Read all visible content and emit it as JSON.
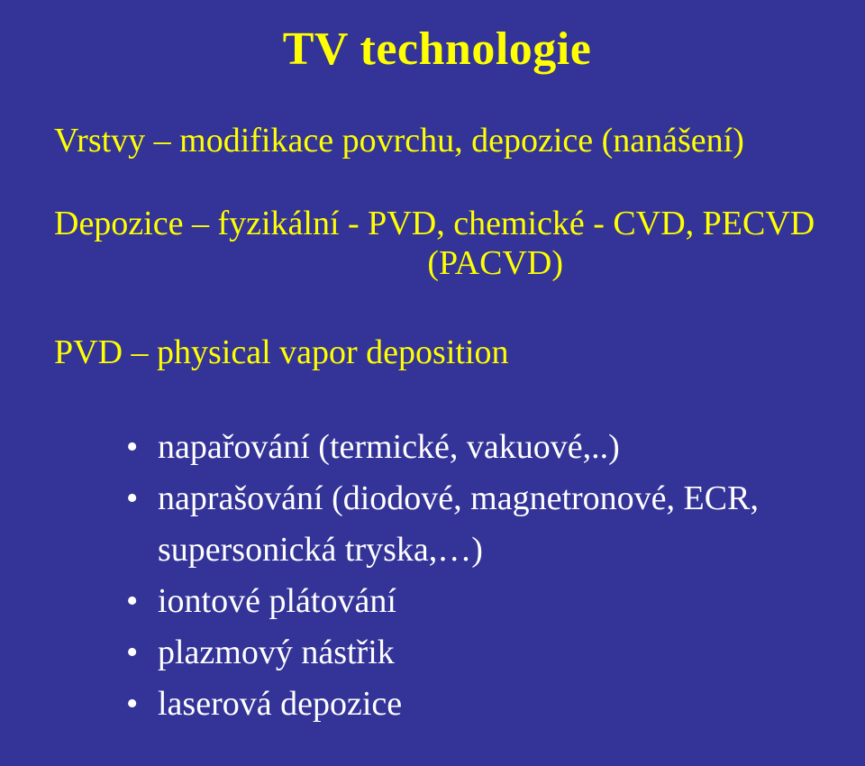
{
  "background_color": "#333398",
  "title_color": "#ffff00",
  "heading_color": "#ffff00",
  "bullet_color": "#ffffff",
  "font_family": "Times New Roman",
  "title": "TV technologie",
  "line1": "Vrstvy – modifikace povrchu, depozice (nanášení)",
  "line2": "Depozice – fyzikální - PVD, chemické - CVD, PECVD",
  "line2_sub": "(PACVD)",
  "line3": "PVD – physical vapor deposition",
  "bullets": [
    "napařování (termické, vakuové,..)",
    "naprašování (diodové, magnetronové, ECR, supersonická tryska,…)",
    "iontové plátování",
    "plazmový nástřik",
    "laserová depozice"
  ]
}
